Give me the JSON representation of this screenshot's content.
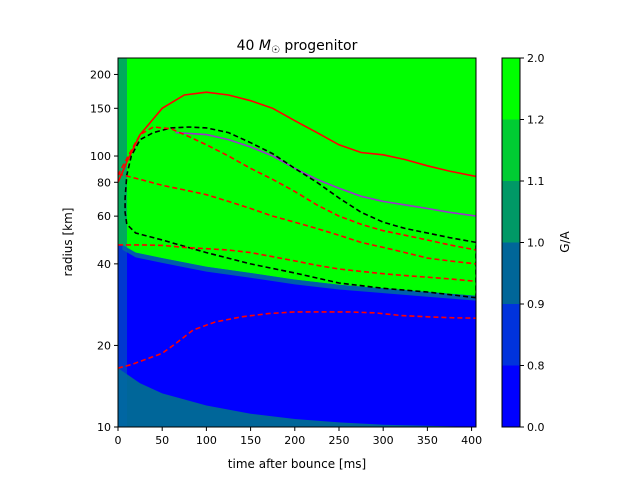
{
  "chart_data": {
    "type": "heatmap",
    "title_prefix": "40 ",
    "title_math": "M",
    "title_sub": "☉",
    "title_suffix": " progenitor",
    "xlabel": "time after bounce [ms]",
    "ylabel": "radius [km]",
    "xlim": [
      0,
      405
    ],
    "ylim": [
      10,
      230
    ],
    "yscale": "log",
    "xticks": [
      0,
      50,
      100,
      150,
      200,
      250,
      300,
      350,
      400
    ],
    "yticks": [
      10,
      20,
      40,
      60,
      80,
      100,
      150,
      200
    ],
    "colorbar": {
      "label": "G/A",
      "ticks": [
        "0.0",
        "0.8",
        "0.9",
        "1.0",
        "1.1",
        "1.2",
        "2.0"
      ],
      "colors": [
        "#0000ff",
        "#0033dd",
        "#006699",
        "#009966",
        "#00cc33",
        "#00ff00"
      ]
    },
    "regions": [
      {
        "name": "G/A > 1.2",
        "color": "#00ff00",
        "boundary_lower": [
          [
            5,
            47
          ],
          [
            20,
            44
          ],
          [
            50,
            42
          ],
          [
            100,
            39
          ],
          [
            150,
            37
          ],
          [
            200,
            35
          ],
          [
            250,
            33.5
          ],
          [
            300,
            32.5
          ],
          [
            350,
            31.5
          ],
          [
            405,
            30.5
          ]
        ]
      },
      {
        "name": "G/A 0.8-0.9",
        "color": "#006699",
        "boundary_upper": [
          [
            0,
            16.5
          ],
          [
            25,
            14.5
          ],
          [
            50,
            13.3
          ],
          [
            100,
            12
          ],
          [
            150,
            11.2
          ],
          [
            200,
            10.7
          ],
          [
            250,
            10.4
          ],
          [
            300,
            10.2
          ],
          [
            350,
            10.1
          ],
          [
            405,
            10.0
          ]
        ]
      }
    ],
    "series": [
      {
        "style": "solid",
        "color": "#ff0000",
        "points": [
          [
            0,
            80
          ],
          [
            10,
            95
          ],
          [
            25,
            120
          ],
          [
            50,
            150
          ],
          [
            75,
            168
          ],
          [
            100,
            172
          ],
          [
            125,
            168
          ],
          [
            150,
            160
          ],
          [
            175,
            150
          ],
          [
            200,
            135
          ],
          [
            225,
            122
          ],
          [
            250,
            110
          ],
          [
            275,
            103
          ],
          [
            300,
            101
          ],
          [
            325,
            97
          ],
          [
            350,
            92
          ],
          [
            375,
            88
          ],
          [
            405,
            84
          ]
        ]
      },
      {
        "style": "solid",
        "color": "#9933cc",
        "points": [
          [
            65,
            122
          ],
          [
            100,
            120
          ],
          [
            125,
            115
          ],
          [
            150,
            108
          ],
          [
            175,
            100
          ],
          [
            200,
            90
          ],
          [
            225,
            82
          ],
          [
            250,
            76
          ],
          [
            275,
            71
          ],
          [
            300,
            68
          ],
          [
            325,
            66
          ],
          [
            350,
            64
          ],
          [
            375,
            62
          ],
          [
            405,
            60
          ]
        ]
      },
      {
        "style": "dashed",
        "color": "#000000",
        "points": [
          [
            405,
            30
          ],
          [
            350,
            31.5
          ],
          [
            300,
            32.5
          ],
          [
            250,
            34
          ],
          [
            200,
            37
          ],
          [
            150,
            40
          ],
          [
            100,
            44
          ],
          [
            50,
            49
          ],
          [
            20,
            52
          ],
          [
            10,
            56
          ],
          [
            8,
            62
          ],
          [
            8,
            70
          ],
          [
            10,
            85
          ],
          [
            15,
            100
          ],
          [
            25,
            115
          ],
          [
            40,
            122
          ],
          [
            60,
            127
          ],
          [
            80,
            128
          ],
          [
            100,
            127
          ],
          [
            125,
            122
          ],
          [
            150,
            112
          ],
          [
            175,
            102
          ],
          [
            200,
            90
          ],
          [
            225,
            80
          ],
          [
            250,
            70
          ],
          [
            275,
            62
          ],
          [
            300,
            57
          ],
          [
            325,
            54
          ],
          [
            350,
            52
          ],
          [
            375,
            50
          ],
          [
            405,
            48
          ],
          [
            405,
            30
          ]
        ]
      },
      {
        "style": "dashed",
        "color": "#ff0000",
        "points": [
          [
            0,
            85
          ],
          [
            15,
            105
          ],
          [
            25,
            120
          ],
          [
            40,
            128
          ],
          [
            60,
            126
          ],
          [
            80,
            118
          ],
          [
            100,
            110
          ],
          [
            125,
            100
          ],
          [
            150,
            90
          ],
          [
            175,
            82
          ],
          [
            200,
            74
          ],
          [
            225,
            66
          ],
          [
            250,
            60
          ],
          [
            275,
            56
          ],
          [
            300,
            53
          ],
          [
            325,
            51
          ],
          [
            350,
            49
          ],
          [
            375,
            47
          ],
          [
            405,
            45
          ]
        ]
      },
      {
        "style": "dashed",
        "color": "#ff0000",
        "points": [
          [
            0,
            86
          ],
          [
            25,
            82
          ],
          [
            50,
            78
          ],
          [
            75,
            75
          ],
          [
            100,
            72
          ],
          [
            125,
            68
          ],
          [
            150,
            64
          ],
          [
            175,
            60
          ],
          [
            200,
            57
          ],
          [
            225,
            54
          ],
          [
            250,
            51
          ],
          [
            275,
            48
          ],
          [
            300,
            46
          ],
          [
            325,
            44
          ],
          [
            350,
            42
          ],
          [
            375,
            41
          ],
          [
            405,
            40
          ]
        ]
      },
      {
        "style": "dashed",
        "color": "#ff0000",
        "points": [
          [
            0,
            47
          ],
          [
            25,
            47
          ],
          [
            50,
            46.8
          ],
          [
            75,
            46
          ],
          [
            100,
            45.5
          ],
          [
            125,
            45
          ],
          [
            150,
            44
          ],
          [
            175,
            42.5
          ],
          [
            200,
            41
          ],
          [
            225,
            39.5
          ],
          [
            250,
            38.3
          ],
          [
            275,
            37.5
          ],
          [
            300,
            36.8
          ],
          [
            325,
            36.2
          ],
          [
            350,
            35.7
          ],
          [
            375,
            35.2
          ],
          [
            405,
            34.5
          ]
        ]
      },
      {
        "style": "dashed",
        "color": "#ff0000",
        "points": [
          [
            0,
            16.5
          ],
          [
            15,
            17
          ],
          [
            30,
            17.7
          ],
          [
            50,
            18.7
          ],
          [
            65,
            20.3
          ],
          [
            85,
            22.8
          ],
          [
            110,
            24.4
          ],
          [
            140,
            25.5
          ],
          [
            170,
            26.2
          ],
          [
            200,
            26.6
          ],
          [
            230,
            26.6
          ],
          [
            260,
            26.6
          ],
          [
            290,
            26.4
          ],
          [
            320,
            25.8
          ],
          [
            350,
            25.5
          ],
          [
            380,
            25.3
          ],
          [
            405,
            25.2
          ]
        ]
      }
    ]
  }
}
